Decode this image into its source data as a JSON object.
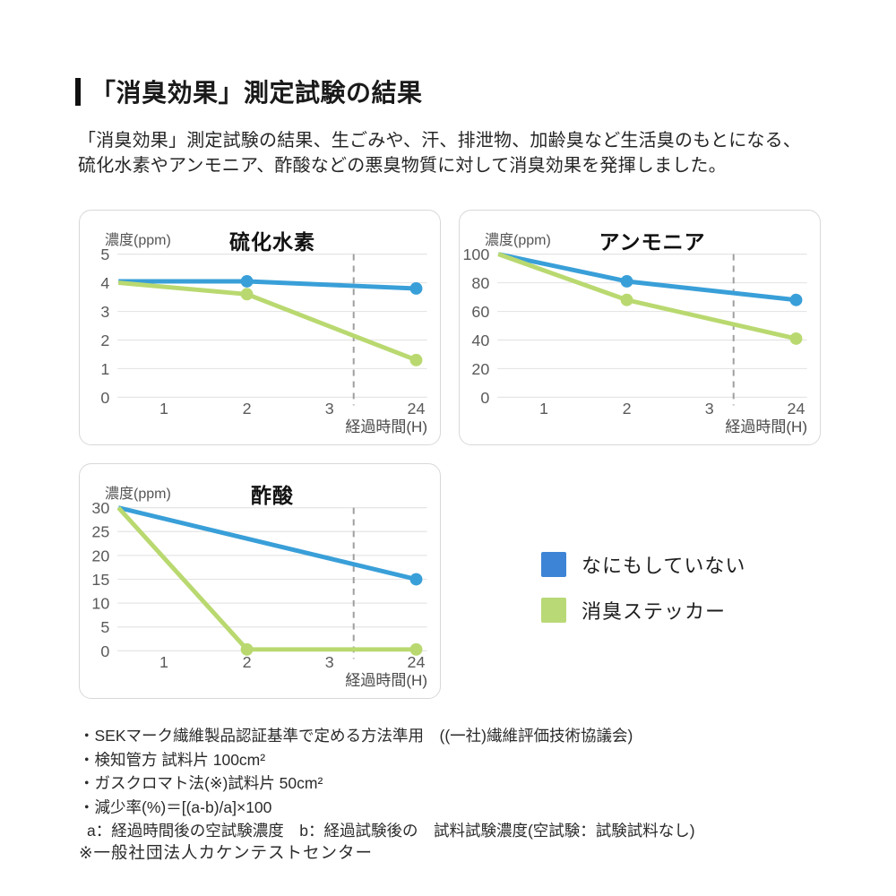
{
  "header": {
    "title": "「消臭効果」測定試験の結果",
    "intro_lines": [
      "「消臭効果」測定試験の結果、生ごみや、汗、排泄物、加齢臭など生活臭のもとになる、",
      "硫化水素やアンモニア、酢酸などの悪臭物質に対して消臭効果を発揮しました。"
    ]
  },
  "colors": {
    "blue": "#399fd8",
    "green": "#b9d970",
    "legend_blue": "#3e84d6",
    "legend_green": "#b9d977",
    "grid": "#e5e5e5",
    "dashed_guide": "#9f9f9f",
    "card_border": "#d8d8d8",
    "tick_text": "#5a5a5a",
    "axis_label_text": "#4a4a4a"
  },
  "legend": {
    "items": [
      {
        "label": "なにもしていない",
        "color": "legend_blue"
      },
      {
        "label": "消臭ステッカー",
        "color": "legend_green"
      }
    ]
  },
  "chart_data": [
    {
      "type": "line",
      "title": "硫化水素",
      "ylabel": "濃度(ppm)",
      "xlabel": "経過時間(H)",
      "x_ticks": [
        "1",
        "2",
        "3",
        "24"
      ],
      "ylim": [
        0,
        5
      ],
      "y_ticks": [
        5,
        4,
        3,
        2,
        1,
        0
      ],
      "dashed_guide": "vertical dashed line between x=3 and x=24",
      "series": [
        {
          "name": "なにもしていない",
          "color": "blue",
          "x_hours": [
            0,
            2,
            24
          ],
          "values": [
            4.05,
            4.05,
            3.8
          ],
          "marker_hours": [
            2,
            24
          ]
        },
        {
          "name": "消臭ステッカー",
          "color": "green",
          "x_hours": [
            0,
            2,
            24
          ],
          "values": [
            4.0,
            3.6,
            1.3
          ],
          "marker_hours": [
            2,
            24
          ]
        }
      ]
    },
    {
      "type": "line",
      "title": "アンモニア",
      "ylabel": "濃度(ppm)",
      "xlabel": "経過時間(H)",
      "x_ticks": [
        "1",
        "2",
        "3",
        "24"
      ],
      "ylim": [
        0,
        100
      ],
      "y_ticks": [
        100,
        80,
        60,
        40,
        20,
        0
      ],
      "dashed_guide": "vertical dashed line between x=3 and x=24",
      "series": [
        {
          "name": "なにもしていない",
          "color": "blue",
          "x_hours": [
            0,
            2,
            24
          ],
          "values": [
            100,
            81,
            68
          ],
          "marker_hours": [
            2,
            24
          ]
        },
        {
          "name": "消臭ステッカー",
          "color": "green",
          "x_hours": [
            0,
            2,
            24
          ],
          "values": [
            100,
            68,
            41
          ],
          "marker_hours": [
            2,
            24
          ]
        }
      ]
    },
    {
      "type": "line",
      "title": "酢酸",
      "ylabel": "濃度(ppm)",
      "xlabel": "経過時間(H)",
      "x_ticks": [
        "1",
        "2",
        "3",
        "24"
      ],
      "ylim": [
        0,
        30
      ],
      "y_ticks": [
        30,
        25,
        20,
        15,
        10,
        5,
        0
      ],
      "dashed_guide": "vertical dashed line between x=3 and x=24",
      "series": [
        {
          "name": "なにもしていない",
          "color": "blue",
          "x_hours": [
            0,
            24
          ],
          "values": [
            30,
            15
          ],
          "marker_hours": [
            24
          ]
        },
        {
          "name": "消臭ステッカー",
          "color": "green",
          "x_hours": [
            0,
            2,
            24
          ],
          "values": [
            30,
            0.3,
            0.3
          ],
          "marker_hours": [
            2,
            24
          ]
        }
      ]
    }
  ],
  "footnotes": {
    "lines": [
      "・SEKマーク繊維製品認証基準で定める方法準用　((一社)繊維評価技術協議会)",
      "・検知管方 試料片 100cm²",
      "・ガスクロマト法(※)試料片 50cm²",
      "・減少率(%)＝[(a-b)/a]×100",
      "a：経過時間後の空試験濃度　b：経過試験後の　試料試験濃度(空試験：試験試料なし)"
    ]
  },
  "source_note": "※一般社団法人カケンテストセンター"
}
